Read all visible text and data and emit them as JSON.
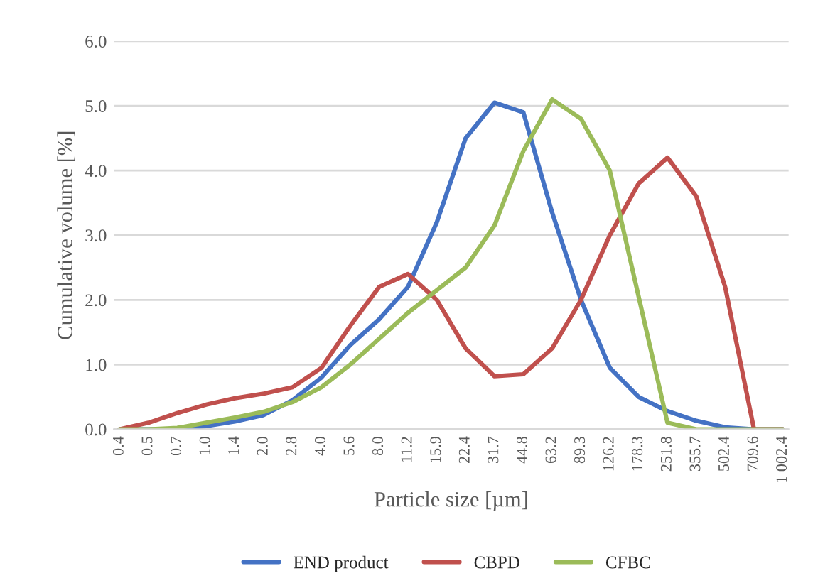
{
  "chart_data": {
    "type": "line",
    "xlabel": "Particle size [µm]",
    "ylabel": "Cumulative volume [%]",
    "categories": [
      "0.4",
      "0.5",
      "0.7",
      "1.0",
      "1.4",
      "2.0",
      "2.8",
      "4.0",
      "5.6",
      "8.0",
      "11.2",
      "15.9",
      "22.4",
      "31.7",
      "44.8",
      "63.2",
      "89.3",
      "126.2",
      "178.3",
      "251.8",
      "355.7",
      "502.4",
      "709.6",
      "1 002.4"
    ],
    "series": [
      {
        "name": "END product",
        "color": "#4472c4",
        "values": [
          0,
          0,
          0,
          0.05,
          0.12,
          0.22,
          0.45,
          0.8,
          1.3,
          1.7,
          2.2,
          3.2,
          4.5,
          5.05,
          4.9,
          3.35,
          2.0,
          0.95,
          0.5,
          0.28,
          0.13,
          0.03,
          0,
          0
        ]
      },
      {
        "name": "CBPD",
        "color": "#c0504d",
        "values": [
          0,
          0.1,
          0.25,
          0.38,
          0.48,
          0.55,
          0.65,
          0.95,
          1.6,
          2.2,
          2.4,
          2.0,
          1.25,
          0.82,
          0.85,
          1.25,
          2.0,
          3.0,
          3.8,
          4.2,
          3.6,
          2.2,
          0,
          0
        ]
      },
      {
        "name": "CFBC",
        "color": "#9bbb59",
        "values": [
          0,
          0,
          0.02,
          0.1,
          0.18,
          0.27,
          0.42,
          0.65,
          1.0,
          1.4,
          1.8,
          2.15,
          2.5,
          3.15,
          4.3,
          5.1,
          4.8,
          4.0,
          2.05,
          0.1,
          0,
          0,
          0,
          0
        ]
      }
    ],
    "ylim": [
      0,
      6
    ],
    "yticks": [
      {
        "value": 0,
        "label": "0.0"
      },
      {
        "value": 1,
        "label": "1.0"
      },
      {
        "value": 2,
        "label": "2.0"
      },
      {
        "value": 3,
        "label": "3.0"
      },
      {
        "value": 4,
        "label": "4.0"
      },
      {
        "value": 5,
        "label": "5.0"
      },
      {
        "value": 6,
        "label": "6.0"
      }
    ],
    "grid": "y",
    "legend": "bottom",
    "line_style": "solid",
    "marker": "none"
  }
}
